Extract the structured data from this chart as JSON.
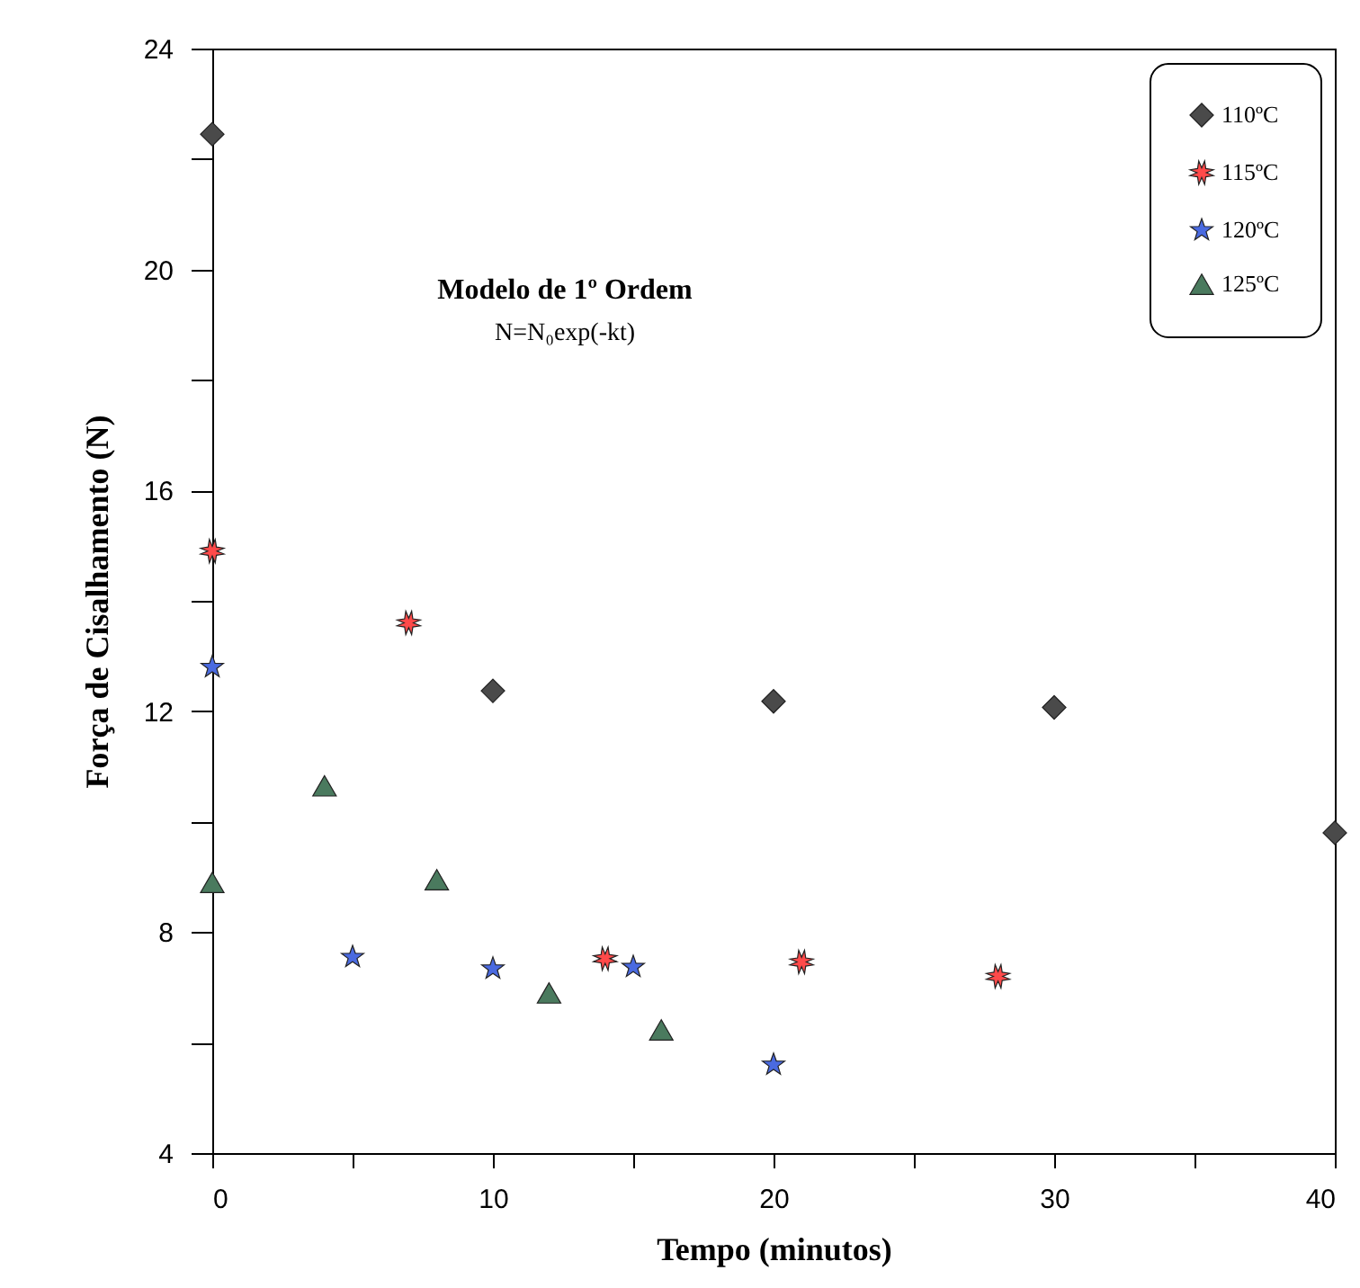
{
  "chart_data": {
    "type": "scatter",
    "xlabel": "Tempo (minutos)",
    "ylabel": "Força de Cisalhamento (N)",
    "annotations": [
      "Modelo de 1º Ordem",
      "N=N₀exp(-kt)"
    ],
    "xlim": [
      0,
      40
    ],
    "xticks": [
      0,
      {
        "value": 5,
        "label": null
      },
      10,
      {
        "value": 15,
        "label": null
      },
      20,
      {
        "value": 25,
        "label": null
      },
      30,
      {
        "value": 35,
        "label": null
      },
      40
    ],
    "ylim": [
      4,
      24
    ],
    "yticks": [
      4,
      {
        "value": 6,
        "label": null
      },
      8,
      {
        "value": 10,
        "label": null
      },
      12,
      {
        "value": 14,
        "label": null
      },
      16,
      {
        "value": 18,
        "label": null
      },
      20,
      {
        "value": 22,
        "label": null
      },
      24
    ],
    "grid": false,
    "legend": "top right",
    "series": [
      {
        "name": "110ºC",
        "color": "#4a4a4a",
        "marker": "diamond",
        "x": [
          0,
          10,
          20,
          30,
          40
        ],
        "values": [
          22.45,
          12.37,
          12.18,
          12.07,
          9.8
        ]
      },
      {
        "name": "115ºC",
        "color": "#ff4a4a",
        "marker": "cross",
        "x": [
          0,
          7,
          14,
          21,
          28
        ],
        "values": [
          14.9,
          13.6,
          7.52,
          7.46,
          7.2
        ]
      },
      {
        "name": "120ºC",
        "color": "#4a6ae0",
        "marker": "star",
        "x": [
          0,
          5,
          10,
          15,
          20
        ],
        "values": [
          12.8,
          7.55,
          7.34,
          7.37,
          5.6
        ]
      },
      {
        "name": "125ºC",
        "color": "#4a7a5e",
        "marker": "triangle",
        "x": [
          0,
          4,
          8,
          12,
          16
        ],
        "values": [
          8.9,
          10.65,
          8.95,
          6.9,
          6.23
        ]
      }
    ]
  }
}
